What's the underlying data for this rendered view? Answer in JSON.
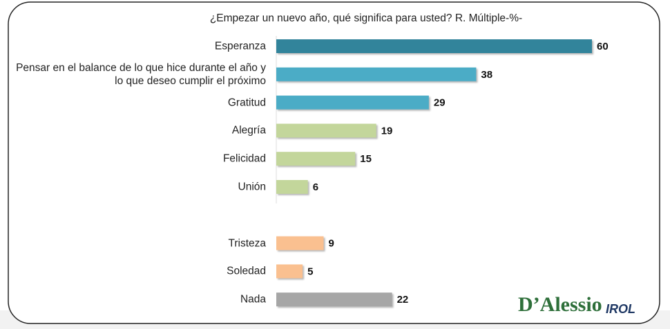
{
  "chart_data": {
    "type": "bar",
    "orientation": "horizontal",
    "title": "¿Empezar un nuevo año, qué significa para usted? R. Múltiple-%-",
    "categories": [
      "Esperanza",
      "Pensar en el balance de lo que hice durante el año y lo que deseo cumplir el próximo",
      "Gratitud",
      "Alegría",
      "Felicidad",
      "Unión",
      null,
      "Tristeza",
      "Soledad",
      "Nada"
    ],
    "values": [
      60,
      38,
      29,
      19,
      15,
      6,
      null,
      9,
      5,
      22
    ],
    "colors": [
      "#31849b",
      "#4bacc6",
      "#4bacc6",
      "#c3d69b",
      "#c3d69b",
      "#c3d69b",
      null,
      "#fac090",
      "#fac090",
      "#a6a6a6"
    ],
    "xlim": [
      0,
      60
    ],
    "brand": "D’Alessio",
    "brand_suffix": "IROL"
  }
}
